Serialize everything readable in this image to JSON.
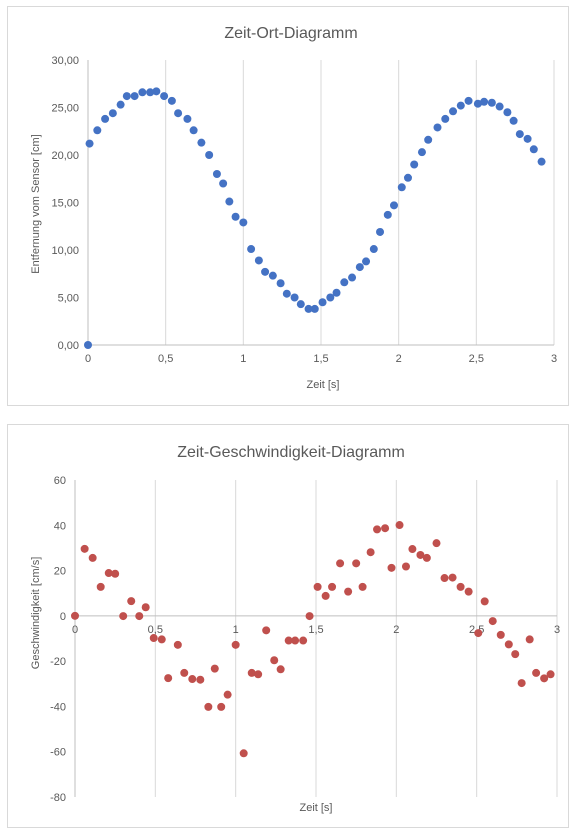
{
  "chart_data": [
    {
      "type": "scatter",
      "title": "Zeit-Ort-Diagramm",
      "xlabel": "Zeit [s]",
      "ylabel": "Entfernung vom Sensor [cm]",
      "xlim": [
        0,
        3
      ],
      "ylim": [
        0,
        30
      ],
      "xticks": [
        "0",
        "0,5",
        "1",
        "1,5",
        "2",
        "2,5",
        "3"
      ],
      "yticks": [
        "0,00",
        "5,00",
        "10,00",
        "15,00",
        "20,00",
        "25,00",
        "30,00"
      ],
      "grid": "vertical",
      "marker_color": "#4472c4",
      "series": [
        {
          "x": [
            0,
            0.01,
            0.06,
            0.11,
            0.16,
            0.21,
            0.25,
            0.3,
            0.35,
            0.4,
            0.44,
            0.49,
            0.54,
            0.58,
            0.64,
            0.68,
            0.73,
            0.78,
            0.83,
            0.87,
            0.91,
            0.95,
            1.0,
            1.05,
            1.1,
            1.14,
            1.19,
            1.24,
            1.28,
            1.33,
            1.37,
            1.42,
            1.46,
            1.51,
            1.56,
            1.6,
            1.65,
            1.7,
            1.75,
            1.79,
            1.84,
            1.88,
            1.93,
            1.97,
            2.02,
            2.06,
            2.1,
            2.15,
            2.19,
            2.25,
            2.3,
            2.35,
            2.4,
            2.45,
            2.51,
            2.55,
            2.6,
            2.65,
            2.7,
            2.74,
            2.78,
            2.83,
            2.87,
            2.92
          ],
          "y": [
            0,
            21.2,
            22.6,
            23.8,
            24.4,
            25.3,
            26.2,
            26.2,
            26.6,
            26.6,
            26.7,
            26.2,
            25.7,
            24.4,
            23.8,
            22.6,
            21.3,
            20.0,
            18.0,
            17.0,
            15.1,
            13.5,
            12.9,
            10.1,
            8.9,
            7.7,
            7.3,
            6.5,
            5.4,
            5.0,
            4.3,
            3.8,
            3.8,
            4.5,
            5.0,
            5.5,
            6.6,
            7.1,
            8.2,
            8.8,
            10.1,
            11.9,
            13.7,
            14.7,
            16.6,
            17.6,
            19.0,
            20.3,
            21.6,
            22.9,
            23.8,
            24.6,
            25.2,
            25.7,
            25.4,
            25.6,
            25.5,
            25.1,
            24.5,
            23.6,
            22.2,
            21.7,
            20.6,
            19.3
          ]
        }
      ]
    },
    {
      "type": "scatter",
      "title": "Zeit-Geschwindigkeit-Diagramm",
      "xlabel": "Zeit [s]",
      "ylabel": "Geschwindigkeit [cm/s]",
      "xlim": [
        0,
        3
      ],
      "ylim": [
        -80,
        60
      ],
      "xticks": [
        "0",
        "0,5",
        "1",
        "1,5",
        "2",
        "2,5",
        "3"
      ],
      "yticks": [
        "-80",
        "-60",
        "-40",
        "-20",
        "0",
        "20",
        "40",
        "60"
      ],
      "grid": "vertical",
      "marker_color": "#c0504d",
      "series": [
        {
          "x": [
            0.0,
            0.06,
            0.11,
            0.16,
            0.21,
            0.25,
            0.3,
            0.35,
            0.4,
            0.44,
            0.49,
            0.54,
            0.58,
            0.64,
            0.68,
            0.73,
            0.78,
            0.83,
            0.87,
            0.91,
            0.95,
            1.0,
            1.05,
            1.1,
            1.14,
            1.19,
            1.24,
            1.28,
            1.33,
            1.37,
            1.42,
            1.46,
            1.51,
            1.56,
            1.6,
            1.65,
            1.7,
            1.75,
            1.79,
            1.84,
            1.88,
            1.93,
            1.97,
            2.02,
            2.06,
            2.1,
            2.15,
            2.19,
            2.25,
            2.3,
            2.35,
            2.4,
            2.45,
            2.51,
            2.55,
            2.6,
            2.65,
            2.7,
            2.74,
            2.78,
            2.83,
            2.87,
            2.92,
            2.96
          ],
          "y": [
            0,
            29.6,
            25.6,
            12.8,
            18.9,
            18.6,
            -0.1,
            6.5,
            -0.1,
            3.8,
            -9.8,
            -10.4,
            -27.5,
            -12.8,
            -25.2,
            -27.9,
            -28.2,
            -40.2,
            -23.3,
            -40.2,
            -34.8,
            -12.8,
            -60.7,
            -25.2,
            -25.8,
            -6.4,
            -19.6,
            -23.6,
            -10.9,
            -10.9,
            -10.9,
            -0.1,
            12.8,
            8.8,
            12.8,
            23.2,
            10.7,
            23.2,
            12.8,
            28.1,
            38.2,
            38.7,
            21.2,
            40.1,
            21.8,
            29.5,
            26.9,
            25.6,
            32.1,
            16.7,
            16.9,
            12.8,
            10.7,
            -7.6,
            6.4,
            -2.3,
            -8.4,
            -12.6,
            -16.9,
            -29.7,
            -10.4,
            -25.2,
            -27.6,
            -25.8
          ]
        }
      ]
    }
  ]
}
